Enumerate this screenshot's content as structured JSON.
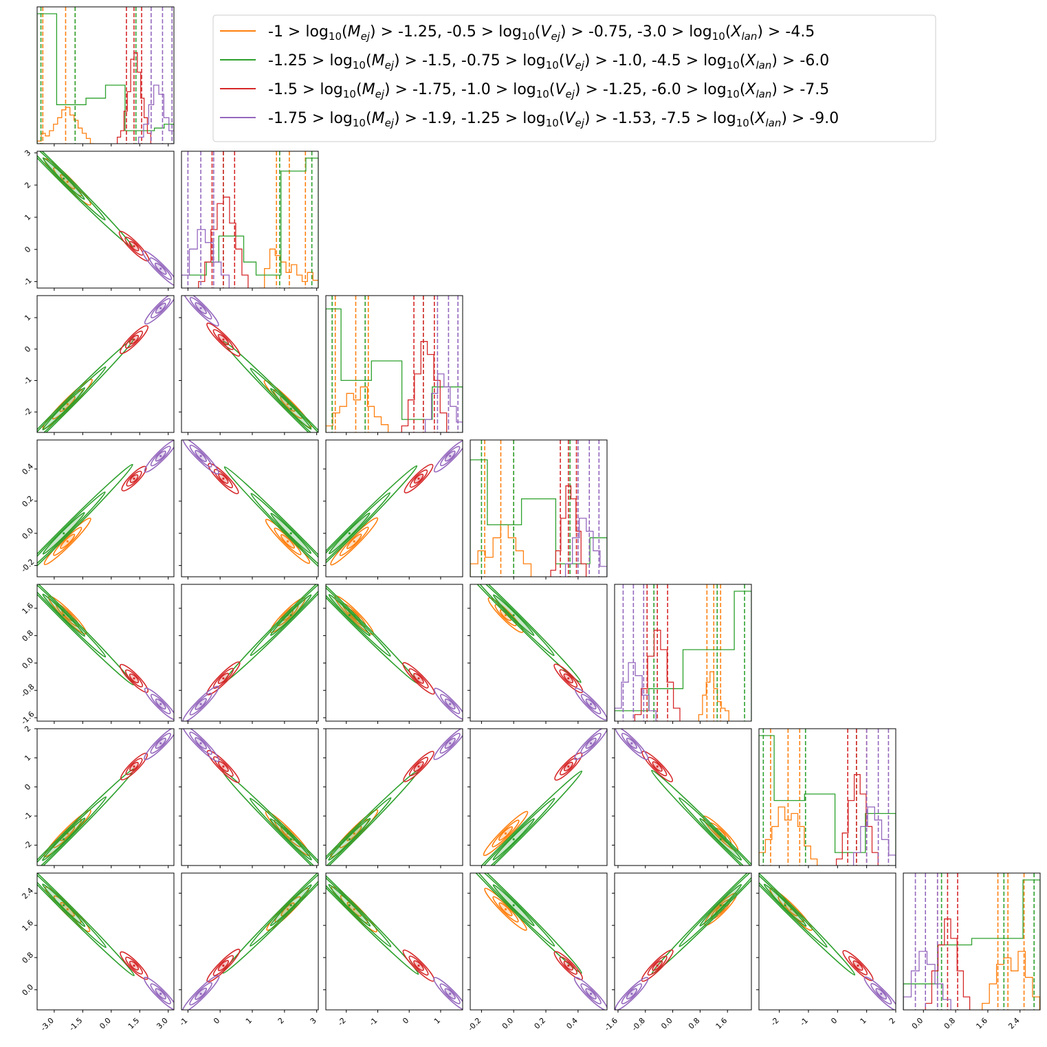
{
  "chart_data": {
    "type": "corner",
    "ndim": 7,
    "series": [
      {
        "name": "-1 > log₁₀(M_ej) > -1.25, -0.5 > log₁₀(V_ej) > -0.75, -3.0 > log₁₀(X_lan) > -4.5",
        "color": "#ff7f0e",
        "centers": [
          -2.3,
          2.1,
          -1.75,
          -0.05,
          1.4,
          -1.6,
          2.0
        ],
        "quantiles": [
          [
            -3.6,
            -2.4,
            -1.9
          ],
          [
            1.75,
            2.15,
            2.65
          ],
          [
            -2.35,
            -1.7,
            -1.3
          ],
          [
            -0.18,
            -0.08,
            0.0
          ],
          [
            1.0,
            1.2,
            1.4
          ],
          [
            -2.3,
            -1.7,
            -1.3
          ],
          [
            1.85,
            2.1,
            2.5
          ]
        ],
        "hist": [
          [
            0.02,
            0.08,
            0.06,
            0.1,
            0.15,
            0.2,
            0.26,
            0.28,
            0.22,
            0.18,
            0.12,
            0.08,
            0.04,
            0.0
          ],
          [
            0.0,
            0.15,
            0.3,
            0.25,
            0.2,
            0.12,
            0.18,
            0.1,
            0.05,
            0.12,
            0.06
          ],
          [
            0.05,
            0.15,
            0.2,
            0.3,
            0.25,
            0.35,
            0.2,
            0.12,
            0.06
          ],
          [
            0.1,
            0.2,
            0.15,
            0.3,
            0.4,
            0.3,
            0.2,
            0.1
          ],
          [
            0.05,
            0.2,
            0.3,
            0.38,
            0.25,
            0.15,
            0.1,
            0.08
          ],
          [
            0.1,
            0.2,
            0.3,
            0.45,
            0.35,
            0.4,
            0.3,
            0.15,
            0.05
          ],
          [
            0.05,
            0.2,
            0.35,
            0.4,
            0.3,
            0.45,
            0.25,
            0.1
          ]
        ]
      },
      {
        "name": "-1.25 > log₁₀(M_ej) > -1.5, -0.75 > log₁₀(V_ej) > -1.0, -4.5 > log₁₀(X_lan) > -6.0",
        "color": "#2ca02c",
        "centers": [
          -2.5,
          2.2,
          -1.9,
          0.0,
          1.4,
          -1.8,
          2.1
        ],
        "quantiles": [
          [
            -3.7,
            -1.9,
            1.3
          ],
          [
            0.1,
            1.85,
            2.85
          ],
          [
            -2.45,
            -1.4,
            0.45
          ],
          [
            -0.2,
            0.0,
            0.35
          ],
          [
            -0.55,
            1.3,
            2.1
          ],
          [
            -2.55,
            -1.1,
            0.65
          ],
          [
            0.45,
            2.0,
            2.75
          ]
        ],
        "hist": [
          [
            1.0,
            1.0,
            0.3,
            0.3,
            0.3,
            0.35,
            0.35,
            0.45,
            0.45,
            0.1,
            0.1,
            0.1,
            0.12,
            0.15
          ],
          [
            0.1,
            0.1,
            0.2,
            0.4,
            0.4,
            0.2,
            0.1,
            0.1,
            0.9,
            0.9,
            1.0
          ],
          [
            0.95,
            0.4,
            0.4,
            0.55,
            0.55,
            0.1,
            0.1,
            0.35,
            0.35
          ],
          [
            0.9,
            0.4,
            0.4,
            0.6,
            0.6,
            0.1,
            0.1,
            0.3
          ],
          [
            0.08,
            0.08,
            0.25,
            0.25,
            0.55,
            0.55,
            0.55,
            1.0
          ],
          [
            1.0,
            0.5,
            0.5,
            0.55,
            0.55,
            0.1,
            0.1,
            0.4,
            0.4
          ],
          [
            0.2,
            0.2,
            0.5,
            0.5,
            0.55,
            0.55,
            0.55,
            1.0
          ]
        ]
      },
      {
        "name": "-1.5 > log₁₀(M_ej) > -1.75, -1.0 > log₁₀(V_ej) > -1.25, -6.0 > log₁₀(X_lan) > -7.5",
        "color": "#d62728",
        "centers": [
          1.2,
          0.1,
          0.3,
          0.34,
          -0.45,
          0.7,
          0.6
        ],
        "quantiles": [
          [
            0.8,
            1.2,
            1.6
          ],
          [
            -0.25,
            0.1,
            0.45
          ],
          [
            0.15,
            0.45,
            0.8
          ],
          [
            0.29,
            0.34,
            0.39
          ],
          [
            -0.75,
            -0.45,
            -0.15
          ],
          [
            0.35,
            0.65,
            1.0
          ],
          [
            0.35,
            0.6,
            0.85
          ]
        ],
        "hist": [
          [
            0.05,
            0.1,
            0.25,
            0.4,
            0.65,
            0.7,
            0.55,
            0.35,
            0.2,
            0.08
          ],
          [
            0.05,
            0.2,
            0.45,
            0.65,
            0.7,
            0.5,
            0.3,
            0.1
          ],
          [
            0.05,
            0.25,
            0.45,
            0.7,
            0.6,
            0.4,
            0.15
          ],
          [
            0.05,
            0.2,
            0.45,
            0.7,
            0.6,
            0.35,
            0.1
          ],
          [
            0.05,
            0.25,
            0.5,
            0.7,
            0.55,
            0.3,
            0.1
          ],
          [
            0.05,
            0.25,
            0.5,
            0.7,
            0.55,
            0.3,
            0.1
          ],
          [
            0.05,
            0.3,
            0.5,
            0.7,
            0.55,
            0.3,
            0.1
          ]
        ]
      },
      {
        "name": "-1.75 > log₁₀(M_ej) > -1.9, -1.25 > log₁₀(V_ej) > -1.53, -7.5 > log₁₀(X_lan) > -9.0",
        "color": "#9467bd",
        "centers": [
          2.6,
          -0.6,
          1.3,
          0.48,
          -1.2,
          1.5,
          -0.1
        ],
        "quantiles": [
          [
            2.1,
            2.7,
            3.2
          ],
          [
            -1.0,
            -0.6,
            -0.2
          ],
          [
            0.9,
            1.25,
            1.55
          ],
          [
            0.4,
            0.47,
            0.53
          ],
          [
            -1.45,
            -1.15,
            -0.85
          ],
          [
            1.0,
            1.4,
            1.75
          ],
          [
            -0.2,
            0.05,
            0.35
          ]
        ],
        "hist": [
          [
            0.05,
            0.15,
            0.3,
            0.45,
            0.38,
            0.2,
            0.1
          ],
          [
            0.1,
            0.3,
            0.45,
            0.35,
            0.2,
            0.1
          ],
          [
            0.1,
            0.3,
            0.45,
            0.35,
            0.2,
            0.08
          ],
          [
            0.1,
            0.3,
            0.45,
            0.35,
            0.2,
            0.08
          ],
          [
            0.1,
            0.3,
            0.45,
            0.35,
            0.2,
            0.08
          ],
          [
            0.1,
            0.3,
            0.45,
            0.35,
            0.2,
            0.08
          ],
          [
            0.1,
            0.3,
            0.45,
            0.35,
            0.2,
            0.08
          ]
        ]
      }
    ],
    "axes": [
      {
        "range": [
          -3.9,
          3.3
        ],
        "ticks": [
          "-3.0",
          "-1.5",
          "0.0",
          "1.5",
          "3.0"
        ],
        "tick_values": [
          -3.0,
          -1.5,
          0.0,
          1.5,
          3.0
        ]
      },
      {
        "range": [
          -1.2,
          3.05
        ],
        "ticks": [
          "-1",
          "0",
          "1",
          "2",
          "3"
        ],
        "tick_values": [
          -1,
          0,
          1,
          2,
          3
        ]
      },
      {
        "range": [
          -2.65,
          1.7
        ],
        "ticks": [
          "-2",
          "-1",
          "0",
          "1"
        ],
        "tick_values": [
          -2,
          -1,
          0,
          1
        ]
      },
      {
        "range": [
          -0.27,
          0.58
        ],
        "ticks": [
          "-0.2",
          "0.0",
          "0.2",
          "0.4"
        ],
        "tick_values": [
          -0.2,
          0.0,
          0.2,
          0.4
        ]
      },
      {
        "range": [
          -1.7,
          2.3
        ],
        "ticks": [
          "-1.6",
          "-0.8",
          "0.0",
          "0.8",
          "1.6"
        ],
        "tick_values": [
          -1.6,
          -0.8,
          0.0,
          0.8,
          1.6
        ]
      },
      {
        "range": [
          -2.7,
          2.0
        ],
        "ticks": [
          "-2",
          "-1",
          "0",
          "1",
          "2"
        ],
        "tick_values": [
          -2,
          -1,
          0,
          1,
          2
        ]
      },
      {
        "range": [
          -0.5,
          2.9
        ],
        "ticks": [
          "0.0",
          "0.8",
          "1.6",
          "2.4"
        ],
        "tick_values": [
          0.0,
          0.8,
          1.6,
          2.4
        ]
      }
    ],
    "legend_location": "top-right",
    "legend": [
      {
        "prefix": "-1 > log",
        "sub1": "10",
        "mid1": "(",
        "var1": "M",
        "vsub1": "ej",
        "post1": ") > -1.25, -0.5 > log",
        "sub2": "10",
        "mid2": "(",
        "var2": "V",
        "vsub2": "ej",
        "post2": ") > -0.75, -3.0 > log",
        "sub3": "10",
        "mid3": "(",
        "var3": "X",
        "vsub3": "lan",
        "post3": ") > -4.5"
      },
      {
        "prefix": "-1.25 > log",
        "sub1": "10",
        "mid1": "(",
        "var1": "M",
        "vsub1": "ej",
        "post1": ") > -1.5, -0.75 > log",
        "sub2": "10",
        "mid2": "(",
        "var2": "V",
        "vsub2": "ej",
        "post2": ") > -1.0, -4.5 > log",
        "sub3": "10",
        "mid3": "(",
        "var3": "X",
        "vsub3": "lan",
        "post3": ") > -6.0"
      },
      {
        "prefix": "-1.5 > log",
        "sub1": "10",
        "mid1": "(",
        "var1": "M",
        "vsub1": "ej",
        "post1": ") > -1.75, -1.0 > log",
        "sub2": "10",
        "mid2": "(",
        "var2": "V",
        "vsub2": "ej",
        "post2": ") > -1.25, -6.0 > log",
        "sub3": "10",
        "mid3": "(",
        "var3": "X",
        "vsub3": "lan",
        "post3": ") > -7.5"
      },
      {
        "prefix": "-1.75 > log",
        "sub1": "10",
        "mid1": "(",
        "var1": "M",
        "vsub1": "ej",
        "post1": ") > -1.9, -1.25 > log",
        "sub2": "10",
        "mid2": "(",
        "var2": "V",
        "vsub2": "ej",
        "post2": ") > -1.53, -7.5 > log",
        "sub3": "10",
        "mid3": "(",
        "var3": "X",
        "vsub3": "lan",
        "post3": ") > -9.0"
      }
    ],
    "correlation_sign": [
      [
        1,
        -1,
        1,
        1,
        -1,
        1,
        -1
      ],
      [
        -1,
        1,
        -1,
        -1,
        1,
        -1,
        1
      ],
      [
        1,
        -1,
        1,
        1,
        -1,
        1,
        -1
      ],
      [
        1,
        -1,
        1,
        1,
        -1,
        1,
        -1
      ],
      [
        -1,
        1,
        -1,
        -1,
        1,
        -1,
        1
      ],
      [
        1,
        -1,
        1,
        1,
        -1,
        1,
        -1
      ],
      [
        -1,
        1,
        -1,
        -1,
        1,
        -1,
        1
      ]
    ]
  }
}
